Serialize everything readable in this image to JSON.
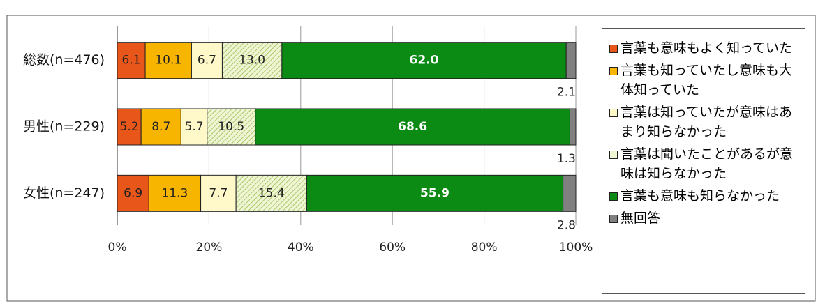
{
  "chart_data": {
    "type": "stacked-bar-horizontal",
    "categories": [
      "総数(n=476)",
      "男性(n=229)",
      "女性(n=247)"
    ],
    "xlim": [
      0,
      100
    ],
    "xticks": [
      {
        "value": 0,
        "label": "0%"
      },
      {
        "value": 20,
        "label": "20%"
      },
      {
        "value": 40,
        "label": "40%"
      },
      {
        "value": 60,
        "label": "60%"
      },
      {
        "value": 80,
        "label": "80%"
      },
      {
        "value": 100,
        "label": "100%"
      }
    ],
    "grid": true,
    "legend": "right",
    "series": [
      {
        "name": "言葉も意味もよく知っていた",
        "color": "#e8561a",
        "values": [
          6.1,
          5.2,
          6.9
        ],
        "value_labels": [
          "6.1",
          "5.2",
          "6.9"
        ]
      },
      {
        "name": "言葉も知っていたし意味も大体知っていた",
        "color": "#f7b500",
        "values": [
          10.1,
          8.7,
          11.3
        ],
        "value_labels": [
          "10.1",
          "8.7",
          "11.3"
        ]
      },
      {
        "name": "言葉は知っていたが意味はあまり知らなかった",
        "color": "#fff9c9",
        "values": [
          6.7,
          5.7,
          7.7
        ],
        "value_labels": [
          "6.7",
          "5.7",
          "7.7"
        ]
      },
      {
        "name": "言葉は聞いたことがあるが意味は知らなかった",
        "color": "#eef5d2",
        "hatch": true,
        "values": [
          13.0,
          10.5,
          15.4
        ],
        "value_labels": [
          "13.0",
          "10.5",
          "15.4"
        ]
      },
      {
        "name": "言葉も意味も知らなかった",
        "color": "#0b8a14",
        "values": [
          62.0,
          68.6,
          55.9
        ],
        "value_labels": [
          "62.0",
          "68.6",
          "55.9"
        ]
      },
      {
        "name": "無回答",
        "color": "#808080",
        "values": [
          2.1,
          1.3,
          2.8
        ],
        "value_labels": [
          "2.1",
          "1.3",
          "2.8"
        ]
      }
    ]
  }
}
